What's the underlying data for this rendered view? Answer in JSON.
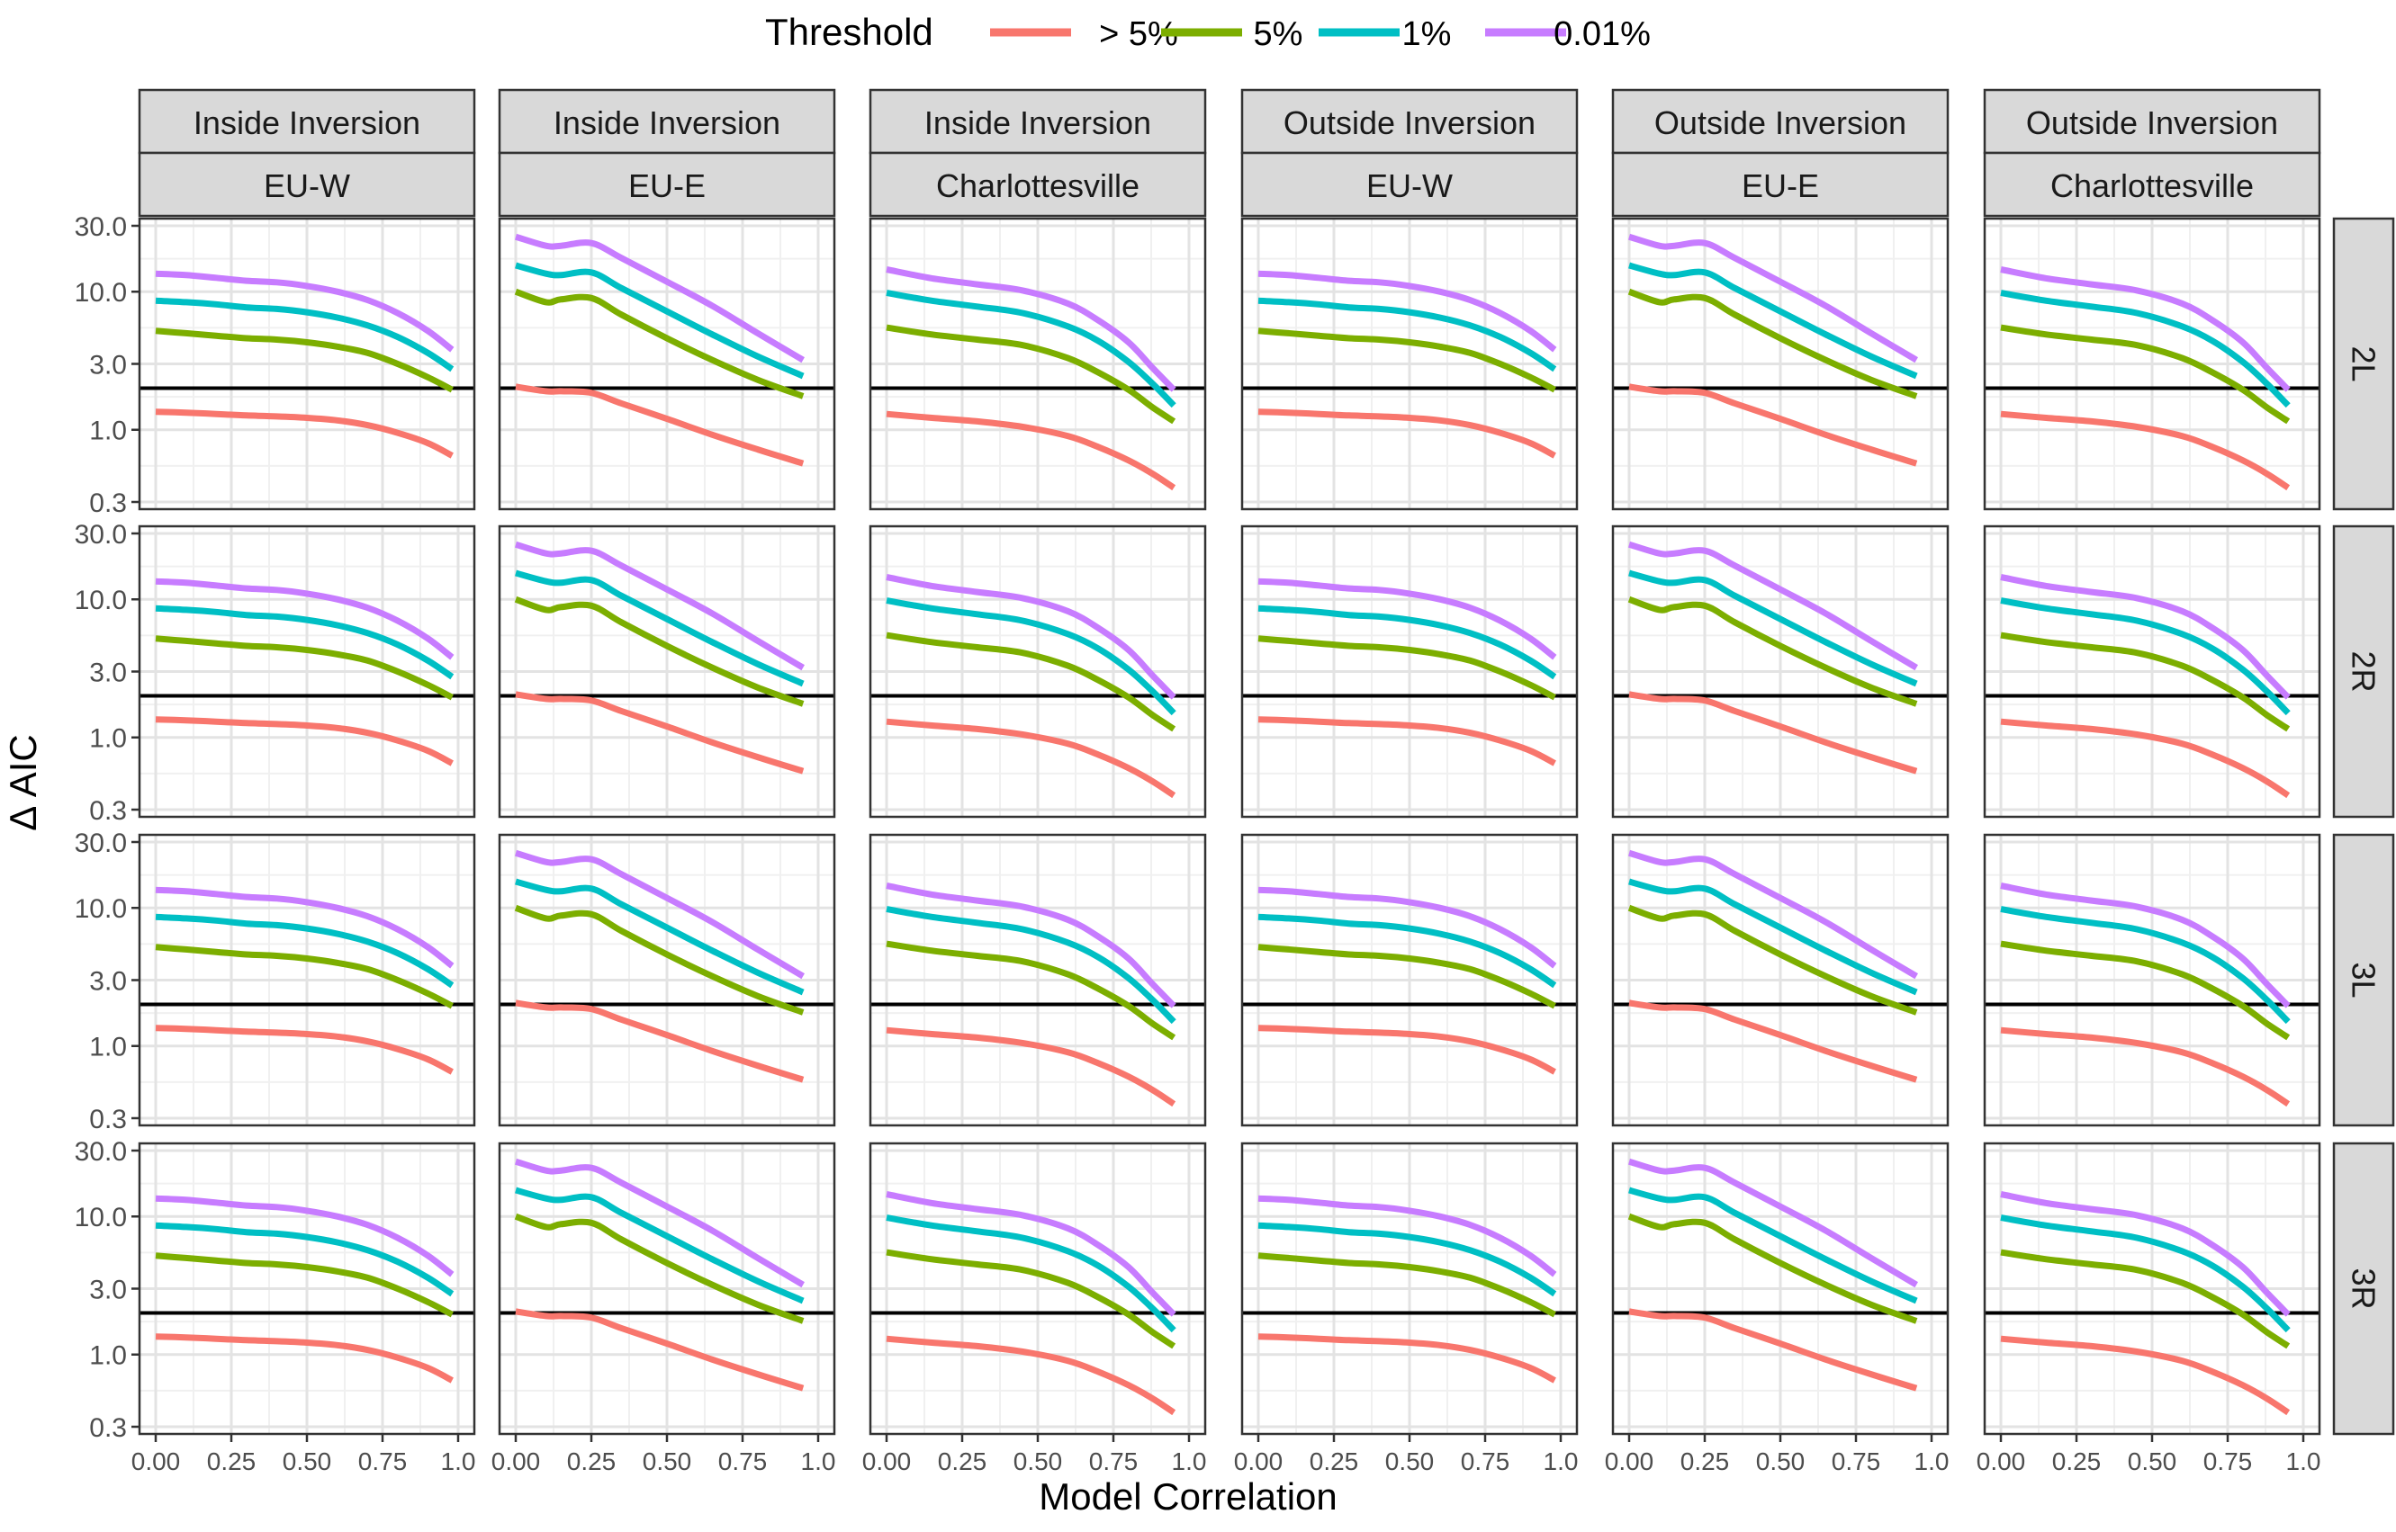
{
  "chart_data": {
    "type": "line",
    "title": "",
    "xlabel": "Model Correlation",
    "ylabel": "Δ AIC",
    "y_scale": "log10",
    "ylim": [
      0.3,
      30.0
    ],
    "xlim": [
      0,
      1
    ],
    "x_ticks": [
      "0.00",
      "0.25",
      "0.50",
      "0.75",
      "1.0"
    ],
    "x_tick_values": [
      0,
      0.25,
      0.5,
      0.75,
      1.0
    ],
    "y_ticks": [
      "0.3",
      "1.0",
      "3.0",
      "10.0",
      "30.0"
    ],
    "y_tick_values": [
      0.3,
      1.0,
      3.0,
      10.0,
      30.0
    ],
    "reference_line_y": 2.0,
    "legend": {
      "title": "Threshold",
      "position": "top",
      "entries": [
        {
          "label": "> 5%",
          "color": "#F8766D"
        },
        {
          "label": "5%",
          "color": "#7CAE00"
        },
        {
          "label": "1%",
          "color": "#00BFC4"
        },
        {
          "label": "0.01%",
          "color": "#C77CFF"
        }
      ]
    },
    "grid": true,
    "column_facets": [
      {
        "top": "Inside Inversion",
        "bottom": "EU-W"
      },
      {
        "top": "Inside Inversion",
        "bottom": "EU-E"
      },
      {
        "top": "Inside Inversion",
        "bottom": "Charlottesville"
      },
      {
        "top": "Outside Inversion",
        "bottom": "EU-W"
      },
      {
        "top": "Outside Inversion",
        "bottom": "EU-E"
      },
      {
        "top": "Outside Inversion",
        "bottom": "Charlottesville"
      }
    ],
    "row_facets": [
      "2L",
      "2R",
      "3L",
      "3R"
    ],
    "curve_templates": {
      "EU-W": {
        "x": [
          0,
          0.1,
          0.2,
          0.3,
          0.4,
          0.5,
          0.6,
          0.7,
          0.8,
          0.9,
          0.98
        ],
        "series": [
          {
            "name": "> 5%",
            "values": [
              1.35,
              1.33,
              1.3,
              1.27,
              1.25,
              1.22,
              1.17,
              1.08,
              0.95,
              0.8,
              0.65
            ]
          },
          {
            "name": "5%",
            "values": [
              5.2,
              5.0,
              4.8,
              4.6,
              4.5,
              4.3,
              4.0,
              3.6,
              3.0,
              2.4,
              1.95
            ]
          },
          {
            "name": "1%",
            "values": [
              8.6,
              8.4,
              8.1,
              7.7,
              7.5,
              7.1,
              6.5,
              5.7,
              4.7,
              3.6,
              2.75
            ]
          },
          {
            "name": "0.01%",
            "values": [
              13.5,
              13.2,
              12.6,
              12.0,
              11.7,
              11.0,
              10.0,
              8.7,
              7.0,
              5.2,
              3.8
            ]
          }
        ]
      },
      "EU-E": {
        "x": [
          0,
          0.1,
          0.15,
          0.25,
          0.35,
          0.5,
          0.65,
          0.8,
          0.95
        ],
        "series": [
          {
            "name": "> 5%",
            "values": [
              2.05,
              1.9,
              1.9,
              1.85,
              1.55,
              1.2,
              0.92,
              0.72,
              0.57
            ]
          },
          {
            "name": "5%",
            "values": [
              10.0,
              8.4,
              8.8,
              9.0,
              6.8,
              4.6,
              3.2,
              2.3,
              1.75
            ]
          },
          {
            "name": "1%",
            "values": [
              15.5,
              13.5,
              13.2,
              13.8,
              10.6,
              7.2,
              4.9,
              3.4,
              2.45
            ]
          },
          {
            "name": "0.01%",
            "values": [
              25.0,
              21.5,
              21.5,
              22.5,
              17.5,
              11.8,
              7.9,
              5.0,
              3.2
            ]
          }
        ]
      },
      "Charlottesville": {
        "x": [
          0,
          0.15,
          0.3,
          0.45,
          0.6,
          0.7,
          0.8,
          0.88,
          0.95
        ],
        "series": [
          {
            "name": "> 5%",
            "values": [
              1.3,
              1.22,
              1.15,
              1.05,
              0.9,
              0.75,
              0.6,
              0.48,
              0.38
            ]
          },
          {
            "name": "5%",
            "values": [
              5.5,
              4.9,
              4.5,
              4.1,
              3.3,
              2.6,
              1.95,
              1.45,
              1.15
            ]
          },
          {
            "name": "1%",
            "values": [
              9.8,
              8.6,
              7.8,
              7.0,
              5.6,
              4.4,
              3.1,
              2.15,
              1.5
            ]
          },
          {
            "name": "0.01%",
            "values": [
              14.5,
              12.5,
              11.3,
              10.2,
              8.2,
              6.2,
              4.3,
              2.8,
              1.95
            ]
          }
        ]
      }
    }
  }
}
